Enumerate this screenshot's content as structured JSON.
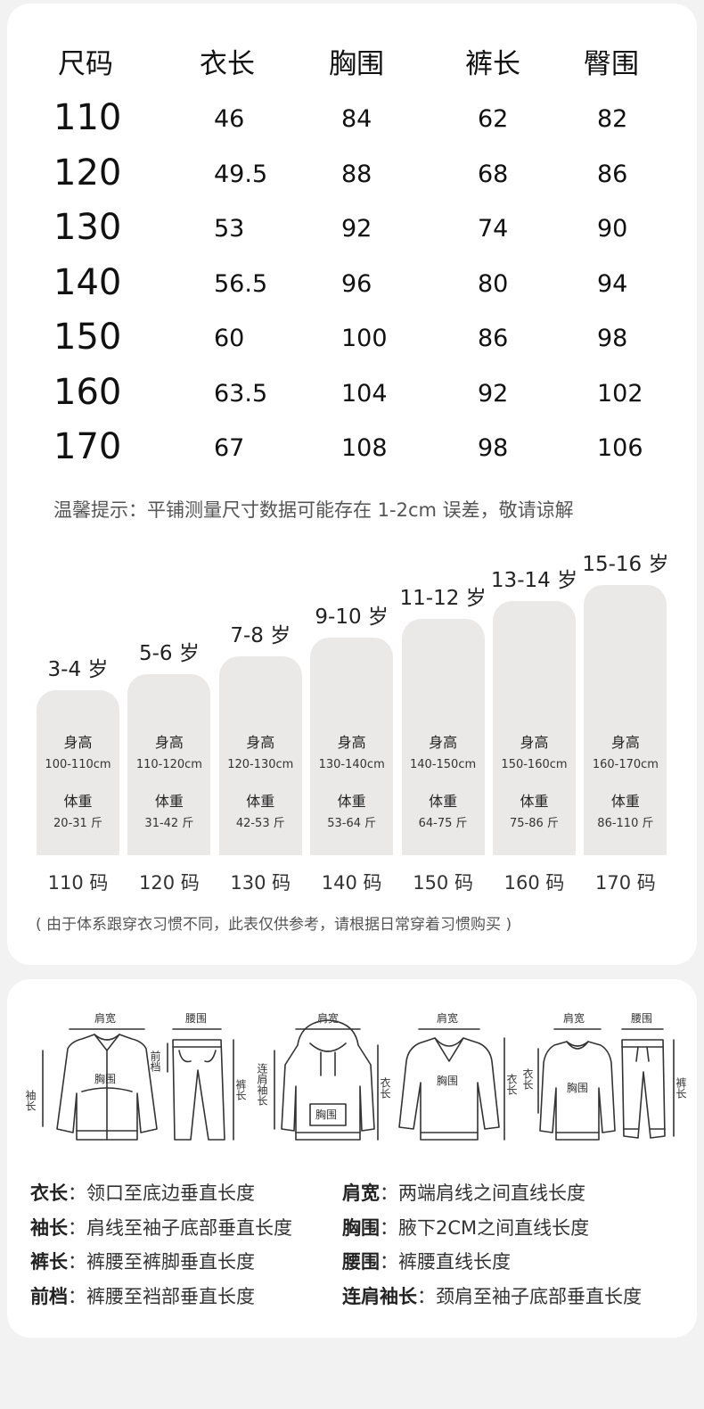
{
  "size_table": {
    "headers": [
      "尺码",
      "衣长",
      "胸围",
      "裤长",
      "臀围"
    ],
    "rows": [
      [
        "110",
        "46",
        "84",
        "62",
        "82"
      ],
      [
        "120",
        "49.5",
        "88",
        "68",
        "86"
      ],
      [
        "130",
        "53",
        "92",
        "74",
        "90"
      ],
      [
        "140",
        "56.5",
        "96",
        "80",
        "94"
      ],
      [
        "150",
        "60",
        "100",
        "86",
        "98"
      ],
      [
        "160",
        "63.5",
        "104",
        "92",
        "102"
      ],
      [
        "170",
        "67",
        "108",
        "98",
        "106"
      ]
    ],
    "tip": "温馨提示：平铺测量尺寸数据可能存在 1-2cm 误差，敬请谅解"
  },
  "age_guide": {
    "height_label": "身高",
    "weight_label": "体重",
    "items": [
      {
        "age": "3-4 岁",
        "height": "100-110cm",
        "weight": "20-31 斤",
        "code": "110 码"
      },
      {
        "age": "5-6 岁",
        "height": "110-120cm",
        "weight": "31-42 斤",
        "code": "120 码"
      },
      {
        "age": "7-8 岁",
        "height": "120-130cm",
        "weight": "42-53 斤",
        "code": "130 码"
      },
      {
        "age": "9-10 岁",
        "height": "130-140cm",
        "weight": "53-64 斤",
        "code": "140 码"
      },
      {
        "age": "11-12 岁",
        "height": "140-150cm",
        "weight": "64-75 斤",
        "code": "150 码"
      },
      {
        "age": "13-14 岁",
        "height": "150-160cm",
        "weight": "75-86 斤",
        "code": "160 码"
      },
      {
        "age": "15-16 岁",
        "height": "160-170cm",
        "weight": "86-110 斤",
        "code": "170 码"
      }
    ],
    "note": "( 由于体系跟穿衣习惯不同，此表仅供参考，请根据日常穿着习惯购买 )"
  },
  "diagram_labels": {
    "jacket_shoulder": "肩宽",
    "jacket_sleeve": "袖长",
    "jacket_chest": "胸围",
    "pants_waist": "腰围",
    "pants_rise": "前档",
    "pants_length": "裤长",
    "hoodie_shoulder": "肩宽",
    "hoodie_raglan": "连肩袖长",
    "hoodie_chest": "胸围",
    "hoodie_length": "衣长",
    "sweater_shoulder": "肩宽",
    "sweater_chest": "胸围",
    "sweater_length": "衣长",
    "sweat_shoulder": "肩宽",
    "sweat_length": "衣长",
    "sweat_chest": "胸围",
    "jogger_waist": "腰围",
    "jogger_length": "裤长"
  },
  "definitions": [
    {
      "term": "衣长",
      "desc": "领口至底边垂直长度"
    },
    {
      "term": "肩宽",
      "desc": "两端肩线之间直线长度"
    },
    {
      "term": "袖长",
      "desc": "肩线至袖子底部垂直长度"
    },
    {
      "term": "胸围",
      "desc": "腋下2CM之间直线长度"
    },
    {
      "term": "裤长",
      "desc": "裤腰至裤脚垂直长度"
    },
    {
      "term": "腰围",
      "desc": "裤腰直线长度"
    },
    {
      "term": "前档",
      "desc": "裤腰至裆部垂直长度"
    },
    {
      "term": "连肩袖长",
      "desc": "颈肩至袖子底部垂直长度"
    }
  ],
  "colors": {
    "page_bg": "#f2f2f2",
    "card_bg": "#ffffff",
    "bar_bg": "#ebe8e8",
    "line": "#333333"
  }
}
